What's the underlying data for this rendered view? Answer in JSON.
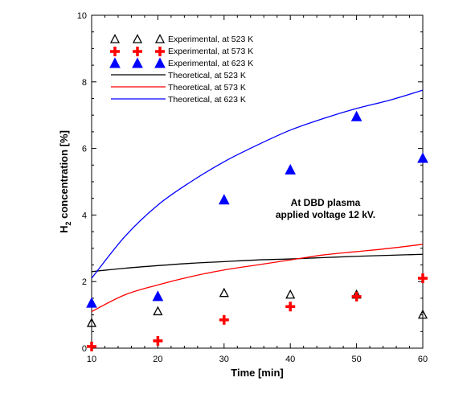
{
  "chart_data": {
    "type": "scatter",
    "xlabel": "Time [min]",
    "ylabel_main": "H",
    "ylabel_sub": "2",
    "ylabel_rest": " concentration [%]",
    "xlim": [
      10,
      60
    ],
    "ylim": [
      0,
      10
    ],
    "xticks": [
      10,
      20,
      30,
      40,
      50,
      60
    ],
    "yticks": [
      0,
      2,
      4,
      6,
      8,
      10
    ],
    "grid": false,
    "legend_position": "top-left",
    "annotation": [
      "At DBD plasma",
      "applied voltage 12 kV."
    ],
    "series": [
      {
        "name": "Experimental, at 523 K",
        "kind": "points",
        "marker": "triangle-open",
        "color": "#000000",
        "x": [
          10,
          20,
          30,
          40,
          50,
          60
        ],
        "y": [
          0.75,
          1.1,
          1.65,
          1.6,
          1.6,
          1.0
        ]
      },
      {
        "name": "Experimental, at 573 K",
        "kind": "points",
        "marker": "cross",
        "color": "#ff0000",
        "x": [
          10,
          20,
          30,
          40,
          50,
          60
        ],
        "y": [
          0.05,
          0.22,
          0.85,
          1.25,
          1.55,
          2.1
        ]
      },
      {
        "name": "Experimental, at 623 K",
        "kind": "points",
        "marker": "triangle-filled",
        "color": "#0000ff",
        "x": [
          10,
          20,
          30,
          40,
          50,
          60
        ],
        "y": [
          1.35,
          1.55,
          4.45,
          5.35,
          6.95,
          5.7
        ]
      },
      {
        "name": "Theoretical, at 523 K",
        "kind": "line",
        "color": "#000000",
        "x": [
          10,
          15,
          20,
          25,
          30,
          35,
          40,
          45,
          50,
          55,
          60
        ],
        "y": [
          2.3,
          2.4,
          2.48,
          2.55,
          2.6,
          2.65,
          2.68,
          2.72,
          2.76,
          2.79,
          2.82
        ]
      },
      {
        "name": "Theoretical, at 573 K",
        "kind": "line",
        "color": "#ff0000",
        "x": [
          10,
          15,
          20,
          25,
          30,
          35,
          40,
          45,
          50,
          55,
          60
        ],
        "y": [
          1.1,
          1.6,
          1.9,
          2.15,
          2.35,
          2.5,
          2.65,
          2.8,
          2.9,
          3.0,
          3.12
        ]
      },
      {
        "name": "Theoretical, at 623 K",
        "kind": "line",
        "color": "#0000ff",
        "x": [
          10,
          15,
          20,
          25,
          30,
          35,
          40,
          45,
          50,
          55,
          60
        ],
        "y": [
          2.1,
          3.35,
          4.3,
          5.0,
          5.6,
          6.1,
          6.55,
          6.9,
          7.2,
          7.45,
          7.75
        ]
      }
    ]
  }
}
